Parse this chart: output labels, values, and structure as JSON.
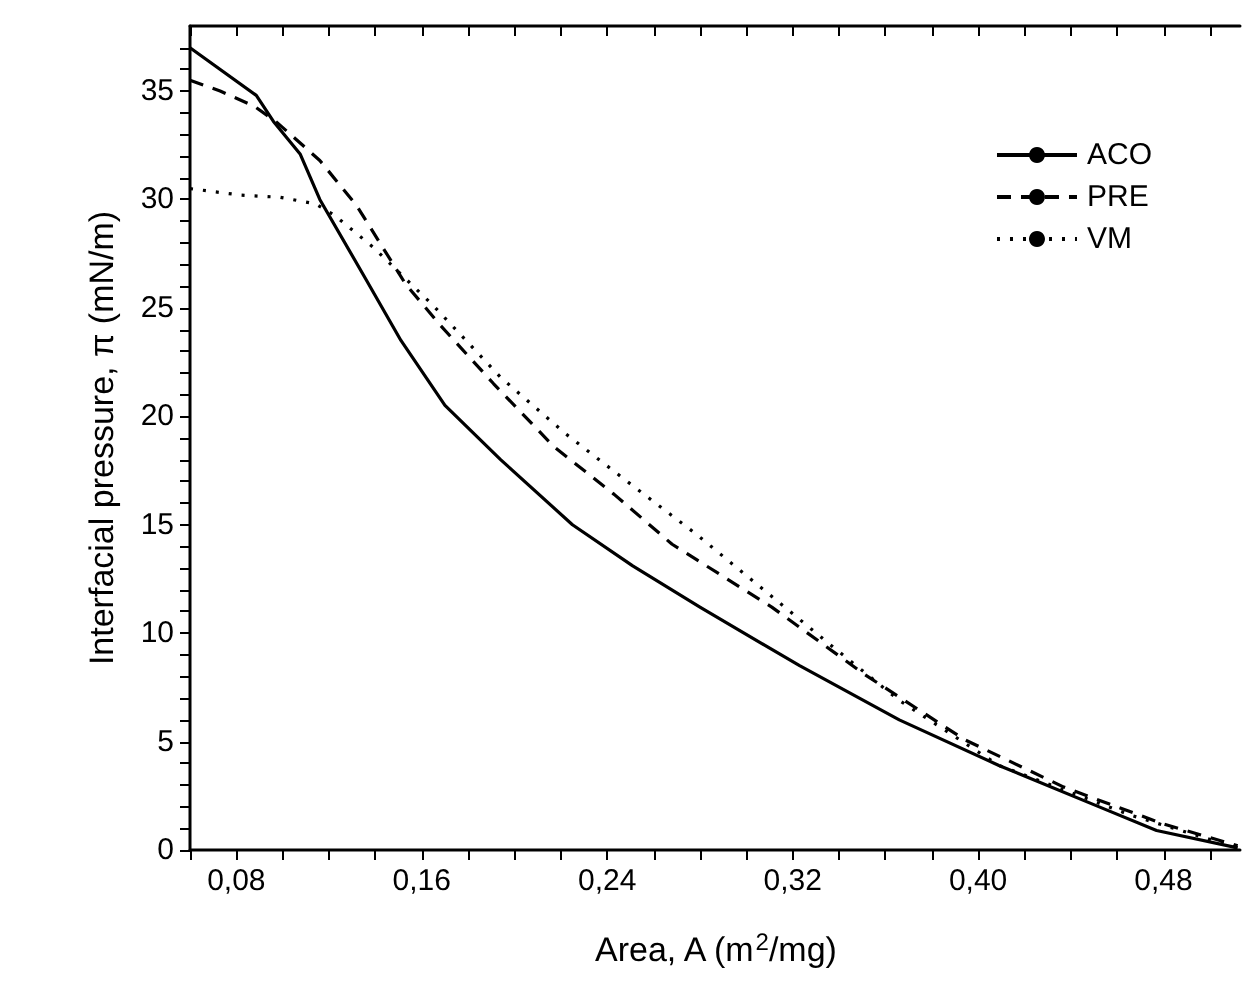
{
  "chart_data": {
    "type": "line",
    "xlabel": "Area, A (m$^{2}$/mg)",
    "ylabel": "Interfacial pressure, π (mN/m)",
    "xlim": [
      0.06,
      0.513
    ],
    "ylim": [
      0,
      38
    ],
    "xticks": [
      {
        "value": 0.06,
        "label": null
      },
      {
        "value": 0.08,
        "label": "0,08"
      },
      {
        "value": 0.1,
        "label": null
      },
      {
        "value": 0.12,
        "label": null
      },
      {
        "value": 0.14,
        "label": null
      },
      {
        "value": 0.16,
        "label": "0,16"
      },
      {
        "value": 0.18,
        "label": null
      },
      {
        "value": 0.2,
        "label": null
      },
      {
        "value": 0.22,
        "label": null
      },
      {
        "value": 0.24,
        "label": "0,24"
      },
      {
        "value": 0.26,
        "label": null
      },
      {
        "value": 0.28,
        "label": null
      },
      {
        "value": 0.3,
        "label": null
      },
      {
        "value": 0.32,
        "label": "0,32"
      },
      {
        "value": 0.34,
        "label": null
      },
      {
        "value": 0.36,
        "label": null
      },
      {
        "value": 0.38,
        "label": null
      },
      {
        "value": 0.4,
        "label": "0,40"
      },
      {
        "value": 0.42,
        "label": null
      },
      {
        "value": 0.44,
        "label": null
      },
      {
        "value": 0.46,
        "label": null
      },
      {
        "value": 0.48,
        "label": "0,48"
      },
      {
        "value": 0.5,
        "label": null
      }
    ],
    "yticks": [
      0,
      {
        "value": 1,
        "label": null
      },
      {
        "value": 2,
        "label": null
      },
      {
        "value": 3,
        "label": null
      },
      {
        "value": 4,
        "label": null
      },
      5,
      {
        "value": 6,
        "label": null
      },
      {
        "value": 7,
        "label": null
      },
      {
        "value": 8,
        "label": null
      },
      {
        "value": 9,
        "label": null
      },
      10,
      {
        "value": 11,
        "label": null
      },
      {
        "value": 12,
        "label": null
      },
      {
        "value": 13,
        "label": null
      },
      {
        "value": 14,
        "label": null
      },
      15,
      {
        "value": 16,
        "label": null
      },
      {
        "value": 17,
        "label": null
      },
      {
        "value": 18,
        "label": null
      },
      {
        "value": 19,
        "label": null
      },
      20,
      {
        "value": 21,
        "label": null
      },
      {
        "value": 22,
        "label": null
      },
      {
        "value": 23,
        "label": null
      },
      {
        "value": 24,
        "label": null
      },
      25,
      {
        "value": 26,
        "label": null
      },
      {
        "value": 27,
        "label": null
      },
      {
        "value": 28,
        "label": null
      },
      {
        "value": 29,
        "label": null
      },
      30,
      {
        "value": 31,
        "label": null
      },
      {
        "value": 32,
        "label": null
      },
      {
        "value": 33,
        "label": null
      },
      {
        "value": 34,
        "label": null
      },
      35,
      {
        "value": 36,
        "label": null
      },
      {
        "value": 37,
        "label": null
      }
    ],
    "grid": false,
    "legend": "top right",
    "marker": "none",
    "series": [
      {
        "name": "ACO",
        "color": "#000000",
        "line_style": "solid",
        "x": [
          0.06,
          0.0886,
          0.096,
          0.1075,
          0.116,
          0.136,
          0.151,
          0.17,
          0.194,
          0.225,
          0.251,
          0.28,
          0.323,
          0.366,
          0.409,
          0.452,
          0.477,
          0.512
        ],
        "values": [
          37.0,
          34.8,
          33.6,
          32.1,
          30.0,
          26.3,
          23.5,
          20.5,
          18.0,
          15.0,
          13.1,
          11.2,
          8.5,
          6.0,
          3.9,
          2.0,
          0.9,
          0.1
        ]
      },
      {
        "name": "PRE",
        "color": "#000000",
        "line_style": "dashed",
        "x": [
          0.06,
          0.073,
          0.0877,
          0.097,
          0.116,
          0.132,
          0.153,
          0.168,
          0.191,
          0.217,
          0.243,
          0.268,
          0.311,
          0.351,
          0.394,
          0.437,
          0.48,
          0.512
        ],
        "values": [
          35.5,
          35.0,
          34.3,
          33.6,
          31.8,
          29.7,
          26.1,
          24.2,
          21.5,
          18.6,
          16.4,
          14.1,
          11.2,
          8.1,
          5.1,
          2.9,
          1.2,
          0.2
        ]
      },
      {
        "name": "VM",
        "color": "#000000",
        "line_style": "dotted",
        "x": [
          0.06,
          0.082,
          0.099,
          0.114,
          0.122,
          0.139,
          0.165,
          0.194,
          0.222,
          0.251,
          0.278,
          0.337,
          0.366,
          0.409,
          0.466,
          0.512
        ],
        "values": [
          30.5,
          30.2,
          30.1,
          29.8,
          29.3,
          27.8,
          25.1,
          21.8,
          19.2,
          16.8,
          14.6,
          9.4,
          6.9,
          3.9,
          1.6,
          0.1
        ]
      }
    ]
  }
}
